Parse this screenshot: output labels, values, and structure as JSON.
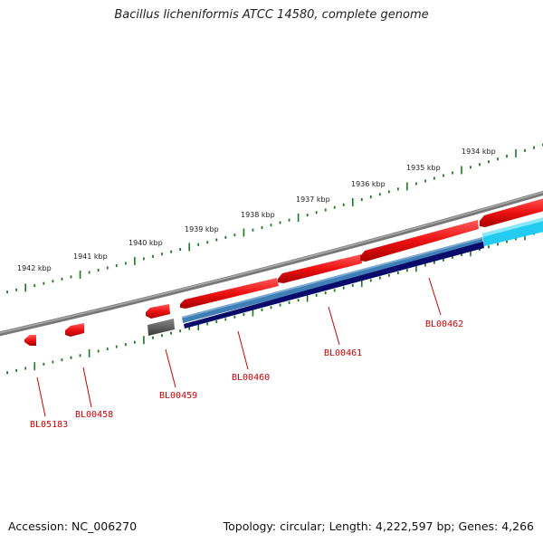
{
  "title": "Bacillus licheniformis ATCC 14580, complete genome",
  "footer": {
    "accession": "Accession: NC_006270",
    "topology": "Topology: circular; Length: 4,222,597 bp; Genes: 4,266"
  },
  "scale": {
    "unit": "kbp",
    "tick_labels": [
      "1934 kbp",
      "1935 kbp",
      "1936 kbp",
      "1937 kbp",
      "1938 kbp",
      "1939 kbp",
      "1940 kbp",
      "1941 kbp",
      "1942 kbp"
    ]
  },
  "colors": {
    "backbone": "#8a8a8a",
    "tick": "#1a7a1a",
    "gene_forward": "#ee1111",
    "gene_reverse": "#ee1111",
    "cds_grey": "#555555",
    "cds_steel": "#3f7fb5",
    "cds_navy": "#0a0a6a",
    "cds_cyan": "#22ccf0",
    "label": "#cc0000"
  },
  "genes": [
    {
      "id": "BL05183",
      "label": "BL05183"
    },
    {
      "id": "BL00458",
      "label": "BL00458"
    },
    {
      "id": "BL00459",
      "label": "BL00459"
    },
    {
      "id": "BL00460",
      "label": "BL00460"
    },
    {
      "id": "BL00461",
      "label": "BL00461"
    },
    {
      "id": "BL00462",
      "label": "BL00462"
    }
  ]
}
